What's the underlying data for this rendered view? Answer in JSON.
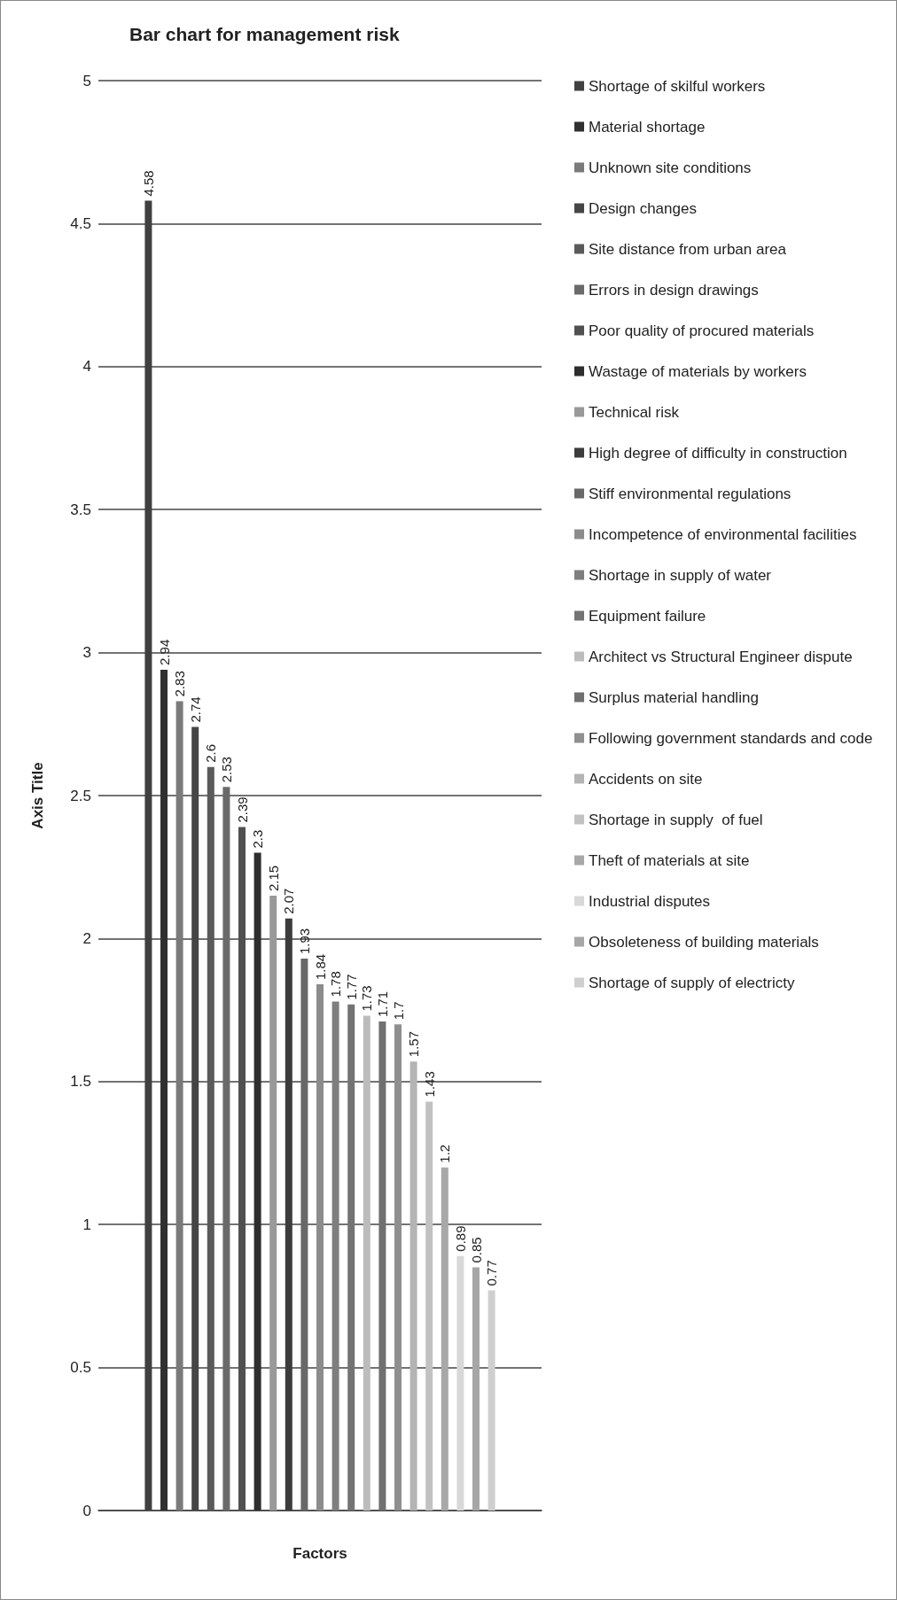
{
  "chart_data": {
    "type": "bar",
    "title": "Bar chart for management risk",
    "xlabel": "Factors",
    "ylabel": "Axis Title",
    "categories": [
      null
    ],
    "series": [
      {
        "name": "Shortage of skilful workers",
        "color": "#404040",
        "values": [
          4.58
        ]
      },
      {
        "name": "Material shortage",
        "color": "#303030",
        "values": [
          2.94
        ]
      },
      {
        "name": "Unknown site conditions",
        "color": "#7a7a7a",
        "values": [
          2.83
        ]
      },
      {
        "name": "Design changes",
        "color": "#454545",
        "values": [
          2.74
        ]
      },
      {
        "name": "Site distance from urban area",
        "color": "#5a5a5a",
        "values": [
          2.6
        ]
      },
      {
        "name": "Errors in design drawings",
        "color": "#6a6a6a",
        "values": [
          2.53
        ]
      },
      {
        "name": "Poor quality of procured materials",
        "color": "#505050",
        "values": [
          2.39
        ]
      },
      {
        "name": "Wastage of materials by workers",
        "color": "#2e2e2e",
        "values": [
          2.3
        ]
      },
      {
        "name": "Technical risk",
        "color": "#999999",
        "values": [
          2.15
        ]
      },
      {
        "name": "High degree of difficulty in construction",
        "color": "#3c3c3c",
        "values": [
          2.07
        ]
      },
      {
        "name": "Stiff environmental regulations",
        "color": "#686868",
        "values": [
          1.93
        ]
      },
      {
        "name": "Incompetence of environmental facilities",
        "color": "#8c8c8c",
        "values": [
          1.84
        ]
      },
      {
        "name": "Shortage in supply of water",
        "color": "#7e7e7e",
        "values": [
          1.78
        ]
      },
      {
        "name": "Equipment failure",
        "color": "#737373",
        "values": [
          1.77
        ]
      },
      {
        "name": "Architect vs Structural Engineer dispute",
        "color": "#bcbcbc",
        "values": [
          1.73
        ]
      },
      {
        "name": "Surplus material handling",
        "color": "#707070",
        "values": [
          1.71
        ]
      },
      {
        "name": "Following government standards and code",
        "color": "#8f8f8f",
        "values": [
          1.7
        ]
      },
      {
        "name": "Accidents on site",
        "color": "#b4b4b4",
        "values": [
          1.57
        ]
      },
      {
        "name": "Shortage in supply  of fuel",
        "color": "#c2c2c2",
        "values": [
          1.43
        ]
      },
      {
        "name": "Theft of materials at site",
        "color": "#a8a8a8",
        "values": [
          1.2
        ]
      },
      {
        "name": "Industrial disputes",
        "color": "#d8d8d8",
        "values": [
          0.89
        ]
      },
      {
        "name": "Obsoleteness of building materials",
        "color": "#a6a6a6",
        "values": [
          0.85
        ]
      },
      {
        "name": "Shortage of supply of electricty",
        "color": "#cfcfcf",
        "values": [
          0.77
        ]
      }
    ],
    "ylim": [
      0,
      5
    ],
    "yticks": [
      0,
      0.5,
      1,
      1.5,
      2,
      2.5,
      3,
      3.5,
      4,
      4.5,
      5
    ],
    "grid": "y",
    "legend": "right",
    "data_labels": true
  }
}
